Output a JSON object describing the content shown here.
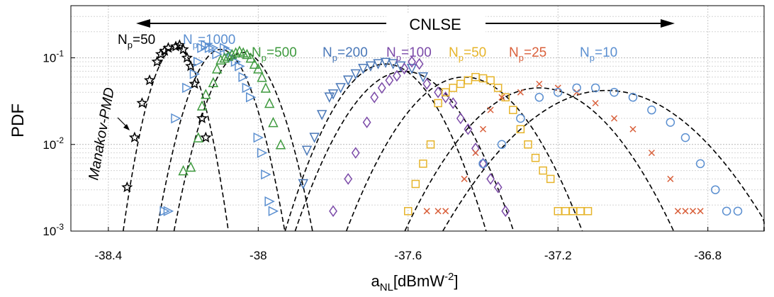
{
  "chart_data": {
    "type": "scatter",
    "title": "",
    "xlabel": "a",
    "xlabel_sub": "NL",
    "xlabel_unit_pre": "[dBmW",
    "xlabel_unit_sup": "-2",
    "xlabel_unit_post": "]",
    "ylabel": "PDF",
    "xlim": [
      -38.5,
      -36.65
    ],
    "ylim": [
      0.001,
      0.4
    ],
    "yscale": "log",
    "x_ticks": [
      -38.4,
      -38.0,
      -37.6,
      -37.2,
      -36.8
    ],
    "x_tick_labels": [
      "-38.4",
      "-38",
      "-37.6",
      "-37.2",
      "-36.8"
    ],
    "y_ticks": [
      0.001,
      0.01,
      0.1
    ],
    "y_tick_labels": [
      {
        "base": "10",
        "exp": "-3"
      },
      {
        "base": "10",
        "exp": "-2"
      },
      {
        "base": "10",
        "exp": "-1"
      }
    ],
    "grid": true,
    "arrow_label": "CNLSE",
    "annotation": "Manakov-PMD",
    "series": [
      {
        "name": "Np=50",
        "label_base": "N",
        "label_sub": "p",
        "label_rest": "=50",
        "model": "Manakov-PMD",
        "color": "#000000",
        "marker": "star",
        "mean": -38.22,
        "peak": 0.13,
        "sigma": 0.045,
        "points": [
          [
            -38.35,
            0.0032
          ],
          [
            -38.33,
            0.012
          ],
          [
            -38.31,
            0.03
          ],
          [
            -38.29,
            0.055
          ],
          [
            -38.27,
            0.09
          ],
          [
            -38.26,
            0.11
          ],
          [
            -38.25,
            0.12
          ],
          [
            -38.24,
            0.13
          ],
          [
            -38.22,
            0.135
          ],
          [
            -38.21,
            0.14
          ],
          [
            -38.2,
            0.125
          ],
          [
            -38.19,
            0.1
          ],
          [
            -38.18,
            0.08
          ],
          [
            -38.17,
            0.05
          ],
          [
            -38.15,
            0.02
          ],
          [
            -38.14,
            0.012
          ]
        ]
      },
      {
        "name": "Np=1000",
        "label_base": "N",
        "label_sub": "p",
        "label_rest": "=1000",
        "model": "CNLSE",
        "color": "#5b8fd0",
        "marker": "triangle-right",
        "mean": -38.1,
        "peak": 0.125,
        "sigma": 0.055,
        "points": [
          [
            -38.25,
            0.0017
          ],
          [
            -38.24,
            0.0017
          ],
          [
            -38.22,
            0.02
          ],
          [
            -38.19,
            0.045
          ],
          [
            -38.17,
            0.065
          ],
          [
            -38.16,
            0.09
          ],
          [
            -38.15,
            0.13
          ],
          [
            -38.14,
            0.14
          ],
          [
            -38.13,
            0.13
          ],
          [
            -38.12,
            0.13
          ],
          [
            -38.11,
            0.11
          ],
          [
            -38.09,
            0.13
          ],
          [
            -38.08,
            0.12
          ],
          [
            -38.07,
            0.1
          ],
          [
            -38.06,
            0.09
          ],
          [
            -38.05,
            0.08
          ],
          [
            -38.04,
            0.06
          ],
          [
            -38.03,
            0.045
          ],
          [
            -38.02,
            0.035
          ],
          [
            -38.0,
            0.012
          ],
          [
            -37.99,
            0.008
          ],
          [
            -37.98,
            0.0045
          ],
          [
            -37.97,
            0.0022
          ],
          [
            -37.96,
            0.0017
          ]
        ]
      },
      {
        "name": "Np=500",
        "label_base": "N",
        "label_sub": "p",
        "label_rest": "=500",
        "model": "CNLSE",
        "color": "#3f9a3f",
        "marker": "triangle-up",
        "mean": -38.04,
        "peak": 0.115,
        "sigma": 0.06,
        "points": [
          [
            -38.2,
            0.005
          ],
          [
            -38.18,
            0.0055
          ],
          [
            -38.16,
            0.012
          ],
          [
            -38.15,
            0.028
          ],
          [
            -38.14,
            0.038
          ],
          [
            -38.12,
            0.052
          ],
          [
            -38.11,
            0.075
          ],
          [
            -38.1,
            0.095
          ],
          [
            -38.09,
            0.1
          ],
          [
            -38.08,
            0.105
          ],
          [
            -38.07,
            0.11
          ],
          [
            -38.06,
            0.115
          ],
          [
            -38.05,
            0.12
          ],
          [
            -38.04,
            0.115
          ],
          [
            -38.03,
            0.11
          ],
          [
            -38.02,
            0.1
          ],
          [
            -38.01,
            0.085
          ],
          [
            -38.0,
            0.075
          ],
          [
            -37.99,
            0.06
          ],
          [
            -37.98,
            0.045
          ],
          [
            -37.97,
            0.03
          ],
          [
            -37.96,
            0.018
          ],
          [
            -37.94,
            0.01
          ]
        ]
      },
      {
        "name": "Np=200",
        "label_base": "N",
        "label_sub": "p",
        "label_rest": "=200",
        "model": "CNLSE",
        "color": "#4a78b8",
        "marker": "triangle-down",
        "mean": -37.66,
        "peak": 0.085,
        "sigma": 0.09,
        "points": [
          [
            -37.88,
            0.0035
          ],
          [
            -37.87,
            0.0085
          ],
          [
            -37.85,
            0.012
          ],
          [
            -37.83,
            0.022
          ],
          [
            -37.81,
            0.035
          ],
          [
            -37.8,
            0.038
          ],
          [
            -37.78,
            0.045
          ],
          [
            -37.76,
            0.055
          ],
          [
            -37.74,
            0.065
          ],
          [
            -37.72,
            0.075
          ],
          [
            -37.7,
            0.08
          ],
          [
            -37.68,
            0.085
          ],
          [
            -37.66,
            0.088
          ],
          [
            -37.64,
            0.085
          ],
          [
            -37.62,
            0.08
          ],
          [
            -37.59,
            0.075
          ],
          [
            -37.56,
            0.06
          ]
        ]
      },
      {
        "name": "Np=100",
        "label_base": "N",
        "label_sub": "p",
        "label_rest": "=100",
        "model": "CNLSE",
        "color": "#7b4aa8",
        "marker": "diamond",
        "mean": -37.61,
        "peak": 0.07,
        "sigma": 0.1,
        "points": [
          [
            -37.8,
            0.0017
          ],
          [
            -37.76,
            0.004
          ],
          [
            -37.74,
            0.008
          ],
          [
            -37.71,
            0.018
          ],
          [
            -37.69,
            0.035
          ],
          [
            -37.67,
            0.045
          ],
          [
            -37.65,
            0.055
          ],
          [
            -37.63,
            0.062
          ],
          [
            -37.61,
            0.075
          ],
          [
            -37.59,
            0.09
          ],
          [
            -37.57,
            0.085
          ],
          [
            -37.55,
            0.05
          ],
          [
            -37.52,
            0.04
          ],
          [
            -37.5,
            0.035
          ],
          [
            -37.48,
            0.03
          ],
          [
            -37.46,
            0.02
          ],
          [
            -37.44,
            0.015
          ],
          [
            -37.42,
            0.009
          ],
          [
            -37.4,
            0.006
          ],
          [
            -37.38,
            0.004
          ],
          [
            -37.36,
            0.0032
          ],
          [
            -37.34,
            0.0017
          ]
        ]
      },
      {
        "name": "Np=50",
        "label_base": "N",
        "label_sub": "p",
        "label_rest": "=50",
        "model": "CNLSE",
        "color": "#e6b42a",
        "marker": "square",
        "mean": -37.45,
        "peak": 0.06,
        "sigma": 0.11,
        "points": [
          [
            -37.6,
            0.0017
          ],
          [
            -37.58,
            0.0035
          ],
          [
            -37.56,
            0.006
          ],
          [
            -37.54,
            0.01
          ],
          [
            -37.52,
            0.03
          ],
          [
            -37.5,
            0.04
          ],
          [
            -37.48,
            0.045
          ],
          [
            -37.46,
            0.05
          ],
          [
            -37.44,
            0.055
          ],
          [
            -37.42,
            0.06
          ],
          [
            -37.4,
            0.058
          ],
          [
            -37.38,
            0.055
          ],
          [
            -37.36,
            0.045
          ],
          [
            -37.34,
            0.035
          ],
          [
            -37.32,
            0.025
          ],
          [
            -37.3,
            0.015
          ],
          [
            -37.28,
            0.01
          ],
          [
            -37.26,
            0.007
          ],
          [
            -37.24,
            0.005
          ],
          [
            -37.22,
            0.004
          ],
          [
            -37.2,
            0.0017
          ],
          [
            -37.18,
            0.0017
          ],
          [
            -37.16,
            0.0017
          ],
          [
            -37.14,
            0.0017
          ],
          [
            -37.12,
            0.0017
          ]
        ]
      },
      {
        "name": "Np=25",
        "label_base": "N",
        "label_sub": "p",
        "label_rest": "=25",
        "model": "CNLSE",
        "color": "#d9603b",
        "marker": "x",
        "mean": -37.25,
        "peak": 0.045,
        "sigma": 0.13,
        "points": [
          [
            -37.55,
            0.0017
          ],
          [
            -37.52,
            0.0017
          ],
          [
            -37.5,
            0.0017
          ],
          [
            -37.45,
            0.004
          ],
          [
            -37.42,
            0.008
          ],
          [
            -37.4,
            0.015
          ],
          [
            -37.38,
            0.025
          ],
          [
            -37.35,
            0.035
          ],
          [
            -37.3,
            0.04
          ],
          [
            -37.25,
            0.05
          ],
          [
            -37.2,
            0.045
          ],
          [
            -37.15,
            0.04
          ],
          [
            -37.1,
            0.03
          ],
          [
            -37.05,
            0.02
          ],
          [
            -37.0,
            0.015
          ],
          [
            -36.95,
            0.008
          ],
          [
            -36.9,
            0.004
          ],
          [
            -36.88,
            0.0017
          ],
          [
            -36.86,
            0.0017
          ],
          [
            -36.84,
            0.0017
          ],
          [
            -36.82,
            0.0017
          ]
        ]
      },
      {
        "name": "Np=10",
        "label_base": "N",
        "label_sub": "p",
        "label_rest": "=10",
        "model": "CNLSE",
        "color": "#5b8fd0",
        "marker": "circle",
        "mean": -37.07,
        "peak": 0.042,
        "sigma": 0.16,
        "points": [
          [
            -37.4,
            0.006
          ],
          [
            -37.35,
            0.01
          ],
          [
            -37.3,
            0.02
          ],
          [
            -37.25,
            0.035
          ],
          [
            -37.2,
            0.04
          ],
          [
            -37.15,
            0.045
          ],
          [
            -37.1,
            0.045
          ],
          [
            -37.05,
            0.04
          ],
          [
            -37.0,
            0.035
          ],
          [
            -36.95,
            0.025
          ],
          [
            -36.9,
            0.018
          ],
          [
            -36.86,
            0.012
          ],
          [
            -36.82,
            0.006
          ],
          [
            -36.78,
            0.003
          ],
          [
            -36.75,
            0.0017
          ],
          [
            -36.72,
            0.0017
          ]
        ]
      }
    ]
  }
}
